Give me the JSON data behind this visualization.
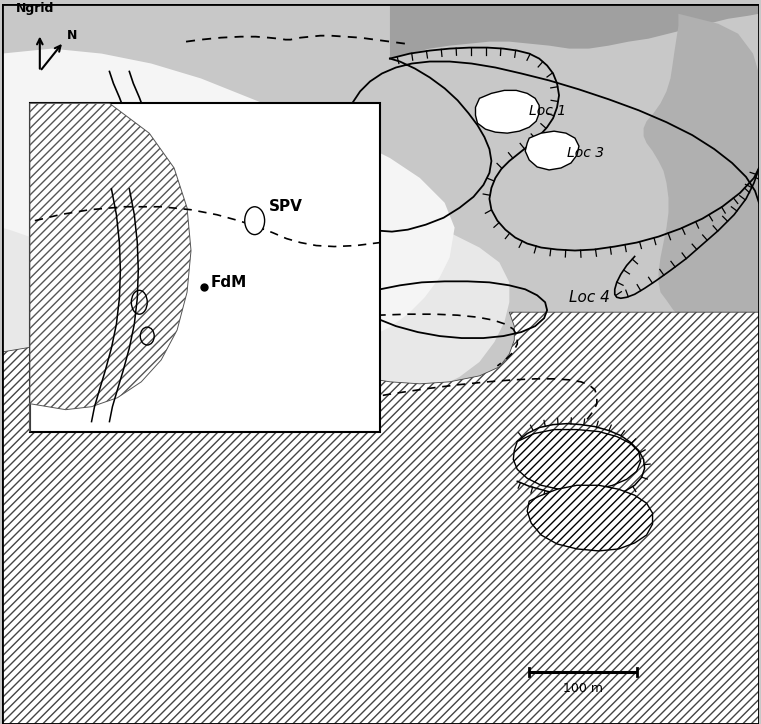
{
  "bg_color": "#c8c8c8",
  "light_center": "#f0f0f0",
  "gray_outcrop": "#a0a0a0",
  "gray_right_edge": "#b8b8b8",
  "white": "#ffffff",
  "scale_bar_label": "100 m",
  "loc1_label": "Loc 1",
  "loc3_label": "Loc 3",
  "loc4_label": "Loc 4",
  "ngrid_label": "Ngrid",
  "n_label": "N",
  "spv_label": "SPV",
  "fdm_label": "FdM",
  "hatch_color": "#444444",
  "line_color": "#222222"
}
